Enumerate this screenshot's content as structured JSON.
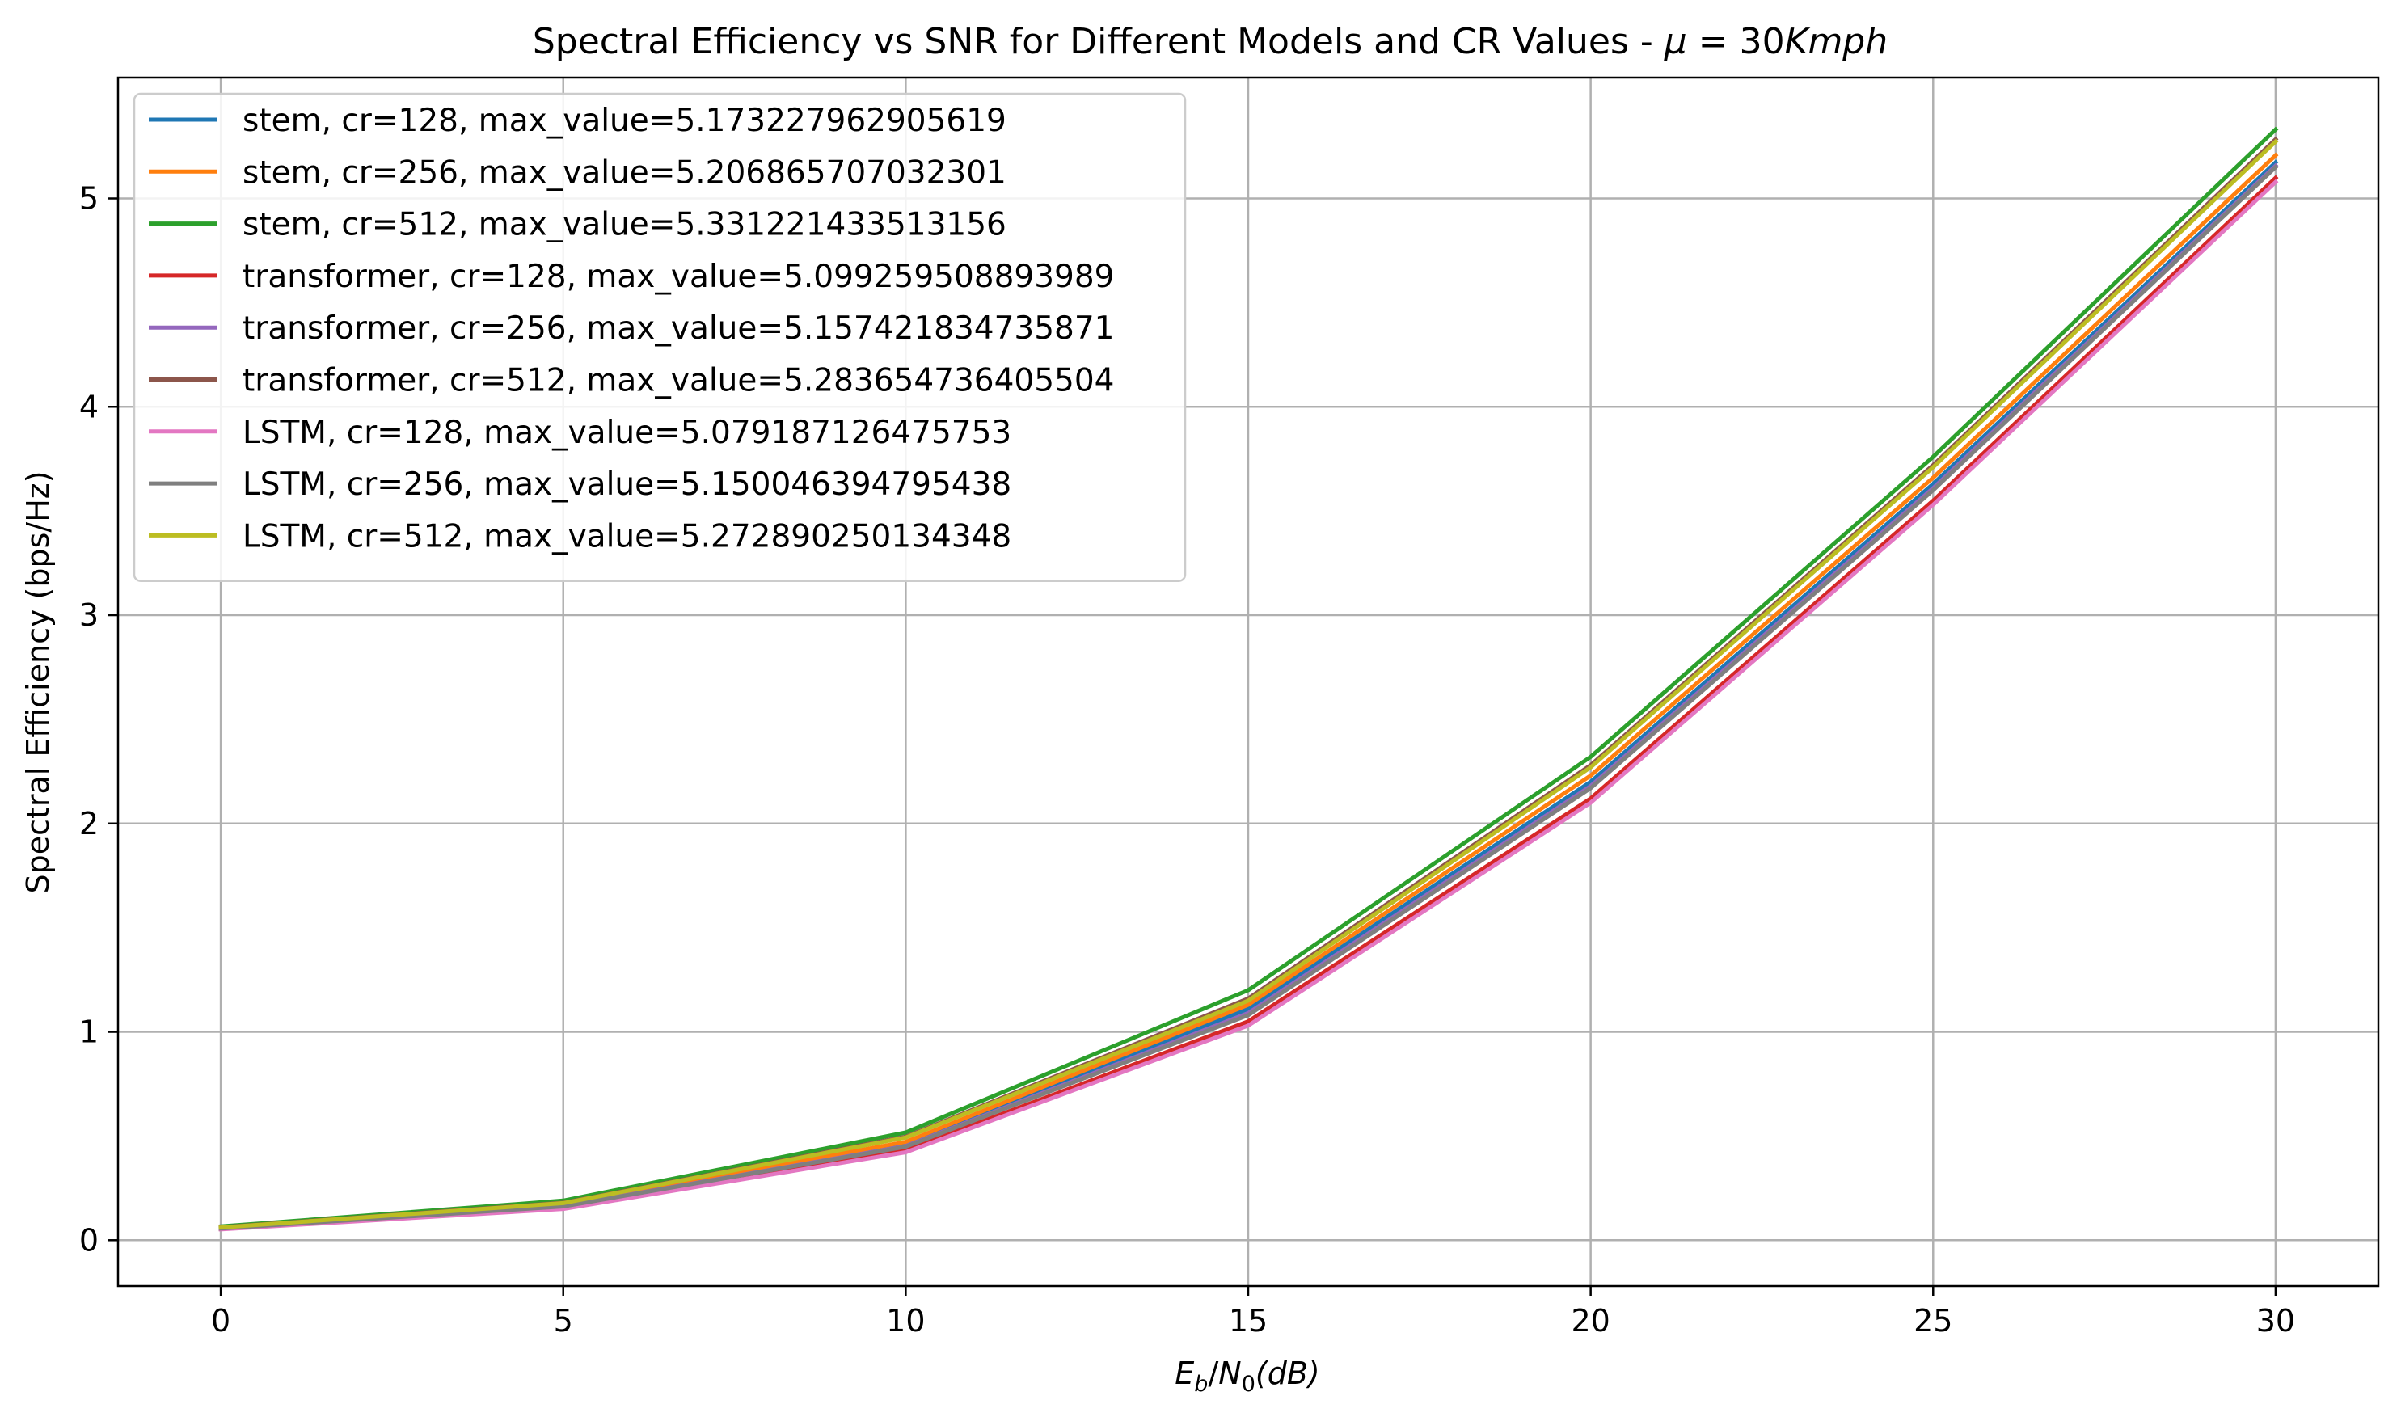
{
  "chart_data": {
    "type": "line",
    "title": "Spectral Efficiency vs SNR for Different Models and CR Values - ",
    "title_math": {
      "mu": "μ",
      "equals": " = 30",
      "unit": "Kmph"
    },
    "xlabel": {
      "E": "E",
      "b": "b",
      "slash": "/",
      "N": "N",
      "zero": "0",
      "dB": "(dB)"
    },
    "ylabel": "Spectral Efficiency (bps/Hz)",
    "xlim": [
      -1.5,
      31.5
    ],
    "ylim": [
      -0.22,
      5.58
    ],
    "xticks": [
      0,
      5,
      10,
      15,
      20,
      25,
      30
    ],
    "yticks": [
      0,
      1,
      2,
      3,
      4,
      5
    ],
    "grid": true,
    "legend_position": "upper-left",
    "x": [
      0,
      5,
      10,
      15,
      20,
      25,
      30
    ],
    "series": [
      {
        "name": "stem, cr=128, max_value=5.173227962905619",
        "color": "#1f77b4",
        "values": [
          0.057,
          0.168,
          0.462,
          1.11,
          2.2,
          3.63,
          5.173
        ]
      },
      {
        "name": "stem, cr=256, max_value=5.206865707032301",
        "color": "#ff7f0e",
        "values": [
          0.058,
          0.172,
          0.472,
          1.13,
          2.23,
          3.66,
          5.207
        ]
      },
      {
        "name": "stem, cr=512, max_value=5.331221433513156",
        "color": "#2ca02c",
        "values": [
          0.066,
          0.19,
          0.517,
          1.2,
          2.32,
          3.76,
          5.331
        ]
      },
      {
        "name": "transformer, cr=128, max_value=5.099259508893989",
        "color": "#d62728",
        "values": [
          0.054,
          0.155,
          0.432,
          1.05,
          2.12,
          3.55,
          5.099
        ]
      },
      {
        "name": "transformer, cr=256, max_value=5.157421834735871",
        "color": "#9467bd",
        "values": [
          0.056,
          0.163,
          0.452,
          1.09,
          2.18,
          3.61,
          5.157
        ]
      },
      {
        "name": "transformer, cr=512, max_value=5.283654736405504",
        "color": "#8c564b",
        "values": [
          0.062,
          0.18,
          0.497,
          1.16,
          2.28,
          3.72,
          5.284
        ]
      },
      {
        "name": "LSTM, cr=128, max_value=5.079187126475753",
        "color": "#e377c2",
        "values": [
          0.052,
          0.15,
          0.422,
          1.03,
          2.1,
          3.53,
          5.079
        ]
      },
      {
        "name": "LSTM, cr=256, max_value=5.150046394795438",
        "color": "#7f7f7f",
        "values": [
          0.056,
          0.162,
          0.449,
          1.08,
          2.17,
          3.6,
          5.15
        ]
      },
      {
        "name": "LSTM, cr=512, max_value=5.272890250134348",
        "color": "#bcbd22",
        "values": [
          0.061,
          0.178,
          0.493,
          1.15,
          2.27,
          3.71,
          5.273
        ]
      }
    ]
  }
}
